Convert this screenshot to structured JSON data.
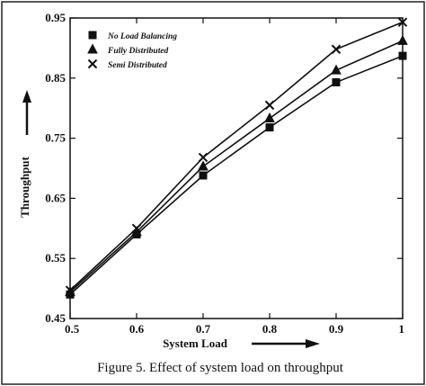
{
  "chart_data": {
    "type": "line",
    "title": "",
    "caption": "Figure 5. Effect of system load on throughput",
    "xlabel": "System Load",
    "ylabel": "Throughput",
    "xlim": [
      0.5,
      1.0
    ],
    "ylim": [
      0.45,
      0.95
    ],
    "x_ticks": [
      "0.5",
      "0.6",
      "0.7",
      "0.8",
      "0.9",
      "1"
    ],
    "y_ticks": [
      "0.45",
      "0.55",
      "0.65",
      "0.75",
      "0.85",
      "0.95"
    ],
    "x": [
      0.5,
      0.6,
      0.7,
      0.8,
      0.9,
      1.0
    ],
    "legend_position": "top-left",
    "grid": false,
    "series": [
      {
        "name": "No Load Balancing",
        "marker": "square",
        "values": [
          0.49,
          0.59,
          0.688,
          0.768,
          0.843,
          0.887
        ]
      },
      {
        "name": "Fully Distributed",
        "marker": "triangle",
        "values": [
          0.494,
          0.594,
          0.703,
          0.783,
          0.863,
          0.912
        ]
      },
      {
        "name": "Semi Distributed",
        "marker": "cross",
        "values": [
          0.497,
          0.6,
          0.718,
          0.805,
          0.898,
          0.943
        ]
      }
    ]
  }
}
